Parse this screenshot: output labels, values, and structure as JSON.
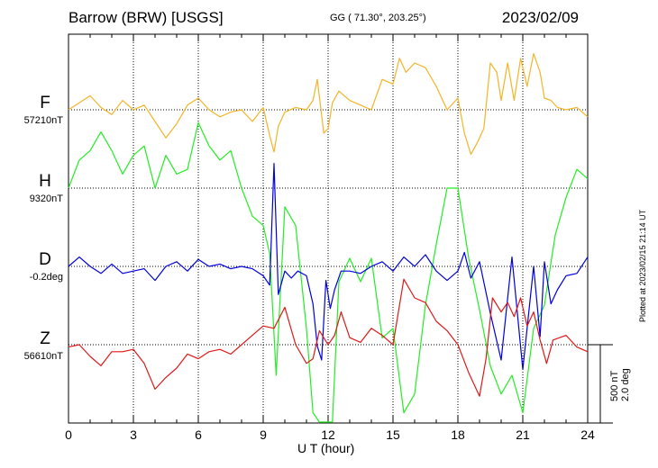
{
  "header": {
    "title": "Barrow (BRW)  [USGS]",
    "coords": "GG ( 71.30°, 203.25°)",
    "date": "2023/02/09"
  },
  "chart_data": {
    "type": "line",
    "xlabel": "U T (hour)",
    "xlim": [
      0,
      24
    ],
    "xticks": [
      "0",
      "3",
      "6",
      "9",
      "12",
      "15",
      "18",
      "21",
      "24"
    ],
    "grid": true,
    "scale": {
      "line1": "500 nT",
      "line2": "2.0 deg"
    },
    "plotted": "Plotted at 2023/02/15 21:14 UT",
    "series": [
      {
        "name": "F",
        "baseline_label": "57210nT",
        "color": "#f4b428",
        "x": [
          0,
          1,
          1.5,
          2,
          2.5,
          3,
          3.5,
          4,
          4.5,
          5,
          5.5,
          6,
          6.5,
          7,
          7.5,
          8,
          8.5,
          9,
          9.3,
          9.5,
          9.7,
          10,
          10.5,
          11,
          11.3,
          11.5,
          11.8,
          12,
          12.2,
          12.5,
          13,
          13.5,
          14,
          14.5,
          15,
          15.3,
          15.6,
          16,
          16.5,
          17,
          17.5,
          18,
          18.3,
          18.6,
          18.9,
          19.2,
          19.5,
          19.8,
          20,
          20.3,
          20.6,
          20.9,
          21.2,
          21.5,
          21.8,
          22,
          22.3,
          22.6,
          23,
          23.5,
          24
        ],
        "values": [
          0,
          30,
          5,
          -10,
          20,
          0,
          10,
          -25,
          -60,
          -30,
          10,
          25,
          0,
          -15,
          -5,
          0,
          -25,
          5,
          -55,
          -90,
          -35,
          -5,
          5,
          0,
          20,
          65,
          -50,
          -40,
          15,
          40,
          20,
          10,
          0,
          65,
          55,
          110,
          80,
          100,
          90,
          50,
          0,
          25,
          -50,
          -95,
          -70,
          -40,
          100,
          80,
          20,
          100,
          20,
          110,
          50,
          120,
          80,
          25,
          20,
          5,
          0,
          5,
          -15
        ]
      },
      {
        "name": "H",
        "baseline_label": "9320nT",
        "color": "#22ee22",
        "x": [
          0,
          0.5,
          1,
          1.5,
          2,
          2.5,
          3,
          3.5,
          4,
          4.5,
          5,
          5.5,
          6,
          6.5,
          7,
          7.5,
          8,
          8.5,
          9,
          9.3,
          9.6,
          10,
          10.5,
          11,
          11.3,
          11.6,
          11.9,
          12.2,
          12.5,
          13,
          13.5,
          14,
          14.5,
          15,
          15.5,
          16,
          16.5,
          17,
          17.5,
          18,
          18.5,
          19,
          19.5,
          20,
          20.5,
          21,
          21.5,
          22,
          22.5,
          23,
          23.5,
          24
        ],
        "values": [
          0,
          60,
          80,
          120,
          80,
          30,
          70,
          90,
          0,
          70,
          30,
          40,
          140,
          90,
          60,
          80,
          0,
          -60,
          -80,
          -140,
          -400,
          -40,
          -80,
          -300,
          -480,
          -520,
          -500,
          -600,
          -200,
          -150,
          -200,
          -150,
          -320,
          -300,
          -480,
          -440,
          -250,
          -120,
          0,
          0,
          -150,
          -260,
          -380,
          -440,
          -400,
          -480,
          -300,
          -250,
          -100,
          -20,
          40,
          20
        ]
      },
      {
        "name": "D",
        "baseline_label": "-0.2deg",
        "color": "#0000dd",
        "x": [
          0,
          0.5,
          1,
          1.5,
          2,
          2.5,
          3,
          3.5,
          4,
          4.5,
          5,
          5.5,
          6,
          6.5,
          7,
          7.5,
          8,
          8.5,
          9,
          9.3,
          9.5,
          9.7,
          10,
          10.3,
          10.6,
          11,
          11.3,
          11.5,
          11.7,
          11.9,
          12.1,
          12.3,
          12.6,
          13,
          13.5,
          14,
          14.5,
          15,
          15.5,
          16,
          16.5,
          17,
          17.5,
          18,
          18.3,
          18.6,
          19,
          19.5,
          20,
          20.5,
          21,
          21.5,
          21.8,
          22,
          22.3,
          22.6,
          23,
          23.5,
          24
        ],
        "values": [
          0,
          20,
          0,
          -15,
          5,
          -15,
          -10,
          -5,
          -30,
          0,
          10,
          -10,
          15,
          0,
          5,
          -5,
          0,
          -5,
          -20,
          -40,
          220,
          -60,
          -10,
          -25,
          -10,
          -20,
          -80,
          -170,
          -200,
          -30,
          -90,
          -50,
          -10,
          -10,
          -15,
          0,
          10,
          -10,
          20,
          0,
          25,
          -10,
          -30,
          -10,
          30,
          -25,
          10,
          -100,
          -200,
          20,
          -220,
          0,
          -150,
          10,
          -80,
          -50,
          -20,
          -15,
          20
        ]
      },
      {
        "name": "Z",
        "baseline_label": "56610nT",
        "color": "#e01818",
        "x": [
          0,
          0.5,
          1,
          1.5,
          2,
          2.5,
          3,
          3.5,
          4,
          4.5,
          5,
          5.5,
          6,
          6.5,
          7,
          7.5,
          8,
          8.5,
          9,
          9.5,
          10,
          10.5,
          11,
          11.3,
          11.6,
          12,
          12.3,
          12.6,
          13,
          13.5,
          14,
          14.5,
          15,
          15.5,
          16,
          16.5,
          17,
          17.5,
          18,
          18.5,
          19,
          19.3,
          19.6,
          20,
          20.3,
          20.6,
          20.9,
          21.2,
          21.5,
          21.8,
          22.1,
          22.4,
          23,
          23.5,
          24
        ],
        "values": [
          -5,
          0,
          -25,
          -45,
          -15,
          -15,
          -10,
          -40,
          -95,
          -70,
          -50,
          -20,
          -30,
          -15,
          -10,
          -20,
          0,
          20,
          40,
          35,
          80,
          0,
          -40,
          -30,
          30,
          0,
          20,
          70,
          15,
          5,
          35,
          20,
          0,
          140,
          100,
          90,
          50,
          30,
          0,
          -60,
          -110,
          -30,
          100,
          70,
          90,
          60,
          100,
          40,
          70,
          10,
          -40,
          10,
          20,
          -5,
          -15
        ]
      }
    ]
  }
}
